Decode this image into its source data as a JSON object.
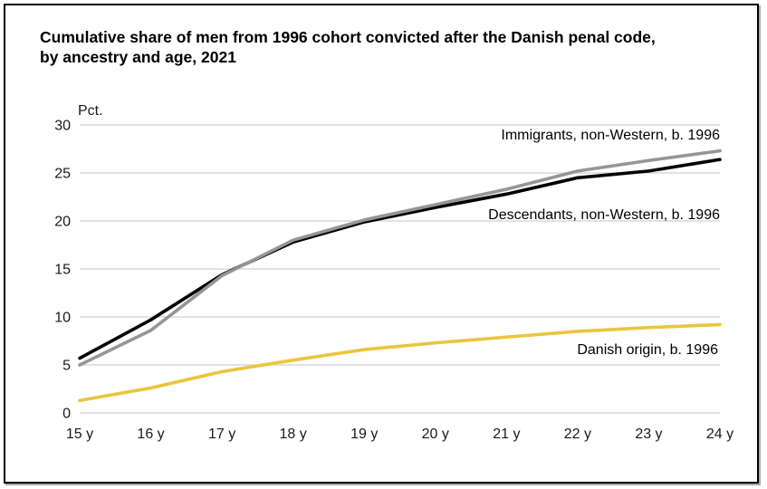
{
  "title": {
    "line1": "Cumulative share of men from 1996 cohort convicted after the Danish penal code,",
    "line2": "by ancestry and age, 2021"
  },
  "chart_data": {
    "type": "line",
    "title": "Cumulative share of men from 1996 cohort convicted after the Danish penal code, by ancestry and age, 2021",
    "xlabel": "",
    "ylabel": "Pct.",
    "ylim": [
      0,
      30
    ],
    "y_ticks": [
      0,
      5,
      10,
      15,
      20,
      25,
      30
    ],
    "grid": true,
    "legend_position": "inline-labels-right",
    "categories": [
      "15 y",
      "16 y",
      "17 y",
      "18 y",
      "19 y",
      "20 y",
      "21 y",
      "22 y",
      "23 y",
      "24 y"
    ],
    "series": [
      {
        "id": "descendants",
        "name": "Descendants, non-Western, b. 1996",
        "color": "#000000",
        "values": [
          5.7,
          9.7,
          14.4,
          17.8,
          19.9,
          21.4,
          22.8,
          24.5,
          25.2,
          26.4
        ]
      },
      {
        "id": "immigrants",
        "name": "Immigrants, non-Western, b. 1996",
        "color": "#969696",
        "values": [
          5.0,
          8.6,
          14.3,
          18.0,
          20.1,
          21.7,
          23.3,
          25.2,
          26.3,
          27.3
        ]
      },
      {
        "id": "danish-origin",
        "name": "Danish origin, b. 1996",
        "color": "#E9C63E",
        "values": [
          1.3,
          2.6,
          4.3,
          5.5,
          6.6,
          7.3,
          7.9,
          8.5,
          8.9,
          9.2
        ]
      }
    ]
  },
  "colors": {
    "descendants_line": "#000000",
    "immigrants_line": "#969696",
    "danish_origin_line": "#E9C63E",
    "gridline": "#D9D9D9",
    "tick_text": "#1A1A1A",
    "frame_border": "#000000"
  }
}
